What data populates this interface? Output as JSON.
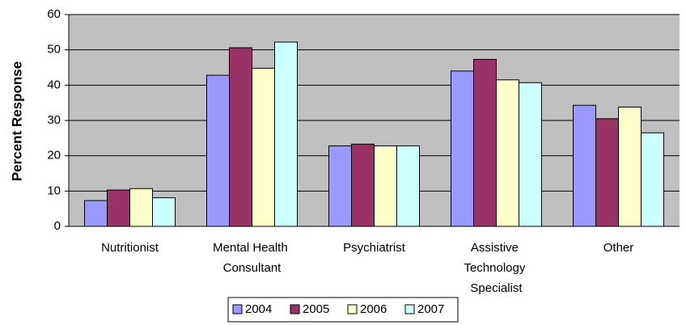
{
  "chart_data": {
    "type": "bar",
    "y_label": "Percent Response",
    "categories": [
      "Nutritionist",
      "Mental Health Consultant",
      "Psychiatrist",
      "Assistive Technology Specialist",
      "Other"
    ],
    "series": [
      {
        "name": "2004",
        "color": "#9999ff",
        "values": [
          7.3,
          42.8,
          22.8,
          44.0,
          34.3
        ]
      },
      {
        "name": "2005",
        "color": "#993366",
        "values": [
          10.3,
          50.6,
          23.3,
          47.3,
          30.5
        ]
      },
      {
        "name": "2006",
        "color": "#ffffcc",
        "values": [
          10.7,
          44.8,
          22.8,
          41.5,
          33.8
        ]
      },
      {
        "name": "2007",
        "color": "#ccffff",
        "values": [
          8.1,
          52.2,
          22.8,
          40.7,
          26.5
        ]
      }
    ],
    "ylim": [
      0,
      60
    ],
    "yticks": [
      0,
      10,
      20,
      30,
      40,
      50,
      60
    ],
    "grid": true,
    "legend": "bottom"
  }
}
